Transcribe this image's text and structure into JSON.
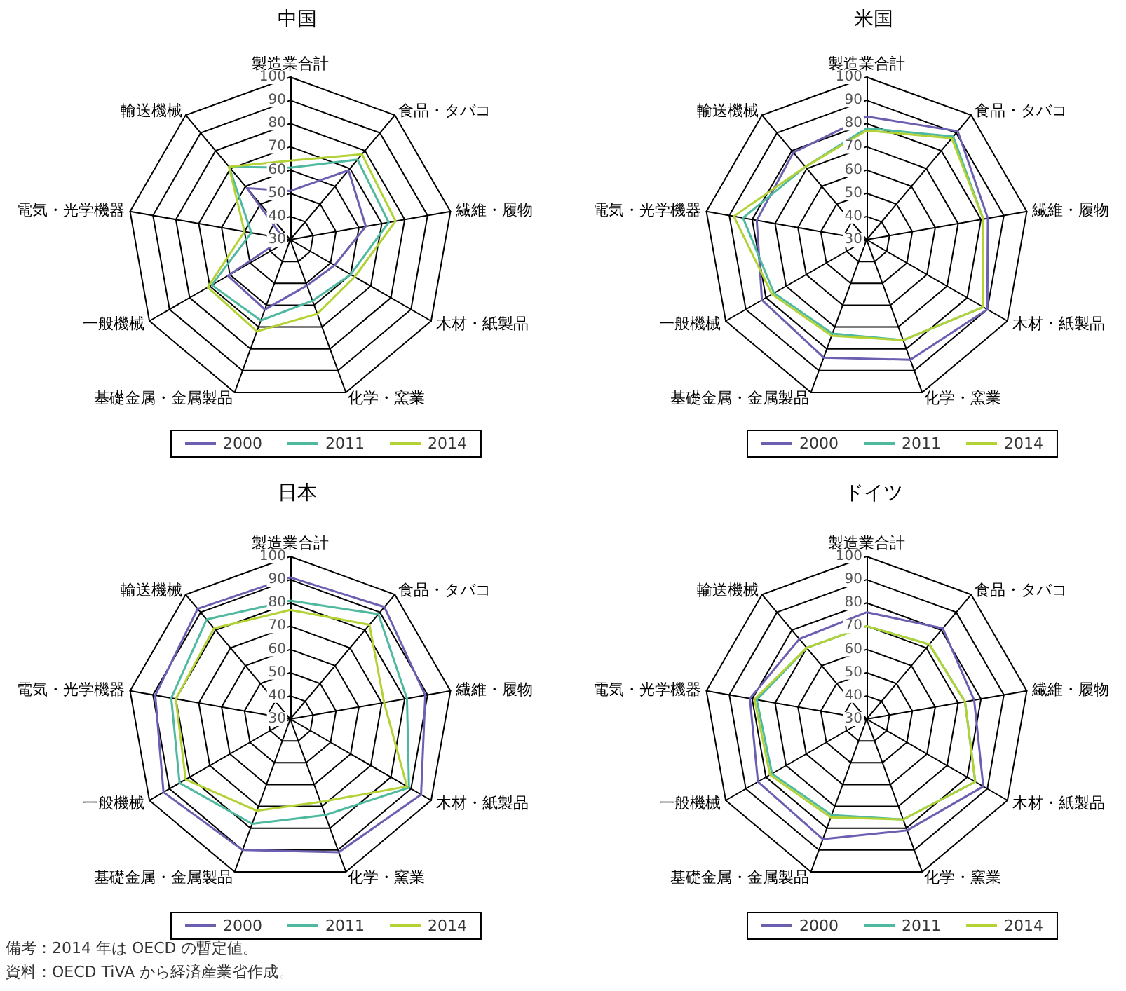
{
  "chart_data": [
    {
      "type": "radar",
      "title": "中国",
      "categories": [
        "製造業合計",
        "食品・タバコ",
        "繊維・履物",
        "木材・紙製品",
        "化学・窯業",
        "基礎金属・金属製品",
        "一般機械",
        "電気・光学機器",
        "輸送機械"
      ],
      "ylim": [
        30,
        100
      ],
      "yticks": [
        30,
        40,
        50,
        60,
        70,
        80,
        90,
        100
      ],
      "grid": true,
      "legend": "bottom",
      "marker": "none",
      "series": [
        {
          "name": "2000",
          "color": "#6a5fb0",
          "values": [
            51,
            69,
            63,
            52,
            51,
            62,
            61,
            33,
            59
          ]
        },
        {
          "name": "2011",
          "color": "#4fb9a0",
          "values": [
            61,
            75,
            73,
            60,
            58,
            67,
            69,
            47,
            71
          ]
        },
        {
          "name": "2014",
          "color": "#b2d235",
          "values": [
            64,
            78,
            76,
            62,
            64,
            72,
            71,
            50,
            71
          ]
        }
      ]
    },
    {
      "type": "radar",
      "title": "米国",
      "categories": [
        "製造業合計",
        "食品・タバコ",
        "繊維・履物",
        "木材・紙製品",
        "化学・窯業",
        "基礎金属・金属製品",
        "一般機械",
        "電気・光学機器",
        "輸送機械"
      ],
      "ylim": [
        30,
        100
      ],
      "yticks": [
        30,
        40,
        50,
        60,
        70,
        80,
        90,
        100
      ],
      "grid": true,
      "legend": "bottom",
      "marker": "none",
      "series": [
        {
          "name": "2000",
          "color": "#6a5fb0",
          "values": [
            83,
            91,
            83,
            90,
            85,
            84,
            82,
            78,
            79
          ]
        },
        {
          "name": "2011",
          "color": "#4fb9a0",
          "values": [
            78,
            88,
            81,
            88,
            76,
            73,
            76,
            84,
            71
          ]
        },
        {
          "name": "2014",
          "color": "#b2d235",
          "values": [
            77,
            87,
            81,
            88,
            76,
            74,
            77,
            88,
            71
          ]
        }
      ]
    },
    {
      "type": "radar",
      "title": "日本",
      "categories": [
        "製造業合計",
        "食品・タバコ",
        "繊維・履物",
        "木材・紙製品",
        "化学・窯業",
        "基礎金属・金属製品",
        "一般機械",
        "電気・光学機器",
        "輸送機械"
      ],
      "ylim": [
        30,
        100
      ],
      "yticks": [
        30,
        40,
        50,
        60,
        70,
        80,
        90,
        100
      ],
      "grid": true,
      "legend": "bottom",
      "marker": "none",
      "annotations": [
        "備考：2014 年は OECD の暫定値。",
        "資料：OECD TiVA から経済産業省作成。"
      ],
      "series": [
        {
          "name": "2000",
          "color": "#6a5fb0",
          "values": [
            91,
            93,
            89,
            95,
            91,
            90,
            93,
            89,
            92
          ]
        },
        {
          "name": "2011",
          "color": "#4fb9a0",
          "values": [
            81,
            89,
            81,
            89,
            74,
            78,
            85,
            82,
            86
          ]
        },
        {
          "name": "2014",
          "color": "#b2d235",
          "values": [
            77,
            83,
            71,
            88,
            68,
            72,
            82,
            80,
            81
          ]
        }
      ]
    },
    {
      "type": "radar",
      "title": "ドイツ",
      "categories": [
        "製造業合計",
        "食品・タバコ",
        "繊維・履物",
        "木材・紙製品",
        "化学・窯業",
        "基礎金属・金属製品",
        "一般機械",
        "電気・光学機器",
        "輸送機械"
      ],
      "ylim": [
        30,
        100
      ],
      "yticks": [
        30,
        40,
        50,
        60,
        70,
        80,
        90,
        100
      ],
      "grid": true,
      "legend": "bottom",
      "marker": "none",
      "series": [
        {
          "name": "2000",
          "color": "#6a5fb0",
          "values": [
            76,
            81,
            77,
            88,
            81,
            85,
            84,
            81,
            75
          ]
        },
        {
          "name": "2011",
          "color": "#4fb9a0",
          "values": [
            70,
            72,
            73,
            84,
            76,
            74,
            77,
            78,
            70
          ]
        },
        {
          "name": "2014",
          "color": "#b2d235",
          "values": [
            70,
            72,
            73,
            84,
            76,
            75,
            78,
            79,
            70
          ]
        }
      ]
    }
  ]
}
